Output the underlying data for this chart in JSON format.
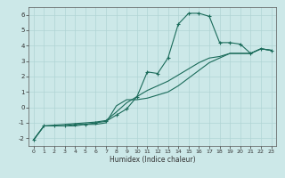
{
  "xlabel": "Humidex (Indice chaleur)",
  "ylabel": "",
  "xlim": [
    -0.5,
    23.5
  ],
  "ylim": [
    -2.5,
    6.5
  ],
  "xticks": [
    0,
    1,
    2,
    3,
    4,
    5,
    6,
    7,
    8,
    9,
    10,
    11,
    12,
    13,
    14,
    15,
    16,
    17,
    18,
    19,
    20,
    21,
    22,
    23
  ],
  "yticks": [
    -2,
    -1,
    0,
    1,
    2,
    3,
    4,
    5,
    6
  ],
  "bg_color": "#cce8e8",
  "grid_color": "#b0d4d4",
  "line_color": "#1a6b5a",
  "curve1_x": [
    0,
    1,
    2,
    3,
    4,
    5,
    6,
    7,
    8,
    9,
    10,
    11,
    12,
    13,
    14,
    15,
    16,
    17,
    18,
    19,
    20,
    21,
    22,
    23
  ],
  "curve1_y": [
    -2.1,
    -1.2,
    -1.2,
    -1.2,
    -1.1,
    -1.1,
    -1.0,
    -0.9,
    -0.5,
    -0.1,
    0.7,
    2.3,
    2.2,
    3.2,
    5.4,
    6.1,
    6.1,
    5.9,
    4.2,
    4.2,
    4.1,
    3.5,
    3.8,
    3.7
  ],
  "curve2_x": [
    0,
    1,
    2,
    3,
    4,
    5,
    6,
    7,
    8,
    9,
    10,
    11,
    12,
    13,
    14,
    15,
    16,
    17,
    18,
    19,
    20,
    21,
    22,
    23
  ],
  "curve2_y": [
    -2.1,
    -1.2,
    -1.2,
    -1.2,
    -1.2,
    -1.1,
    -1.1,
    -1.0,
    0.1,
    0.5,
    0.5,
    0.6,
    0.8,
    1.0,
    1.4,
    1.9,
    2.4,
    2.9,
    3.2,
    3.5,
    3.5,
    3.5,
    3.8,
    3.7
  ],
  "curve3_x": [
    0,
    1,
    2,
    3,
    4,
    5,
    6,
    7,
    8,
    9,
    10,
    11,
    12,
    13,
    14,
    15,
    16,
    17,
    18,
    19,
    20,
    21,
    22,
    23
  ],
  "curve3_y": [
    -2.1,
    -1.2,
    -1.15,
    -1.1,
    -1.05,
    -1.0,
    -0.95,
    -0.85,
    -0.3,
    0.3,
    0.7,
    1.1,
    1.4,
    1.7,
    2.1,
    2.5,
    2.9,
    3.2,
    3.3,
    3.5,
    3.5,
    3.5,
    3.8,
    3.7
  ]
}
